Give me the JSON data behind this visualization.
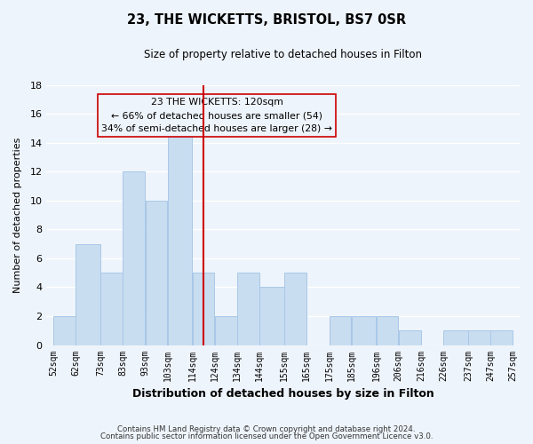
{
  "title": "23, THE WICKETTS, BRISTOL, BS7 0SR",
  "subtitle": "Size of property relative to detached houses in Filton",
  "xlabel": "Distribution of detached houses by size in Filton",
  "ylabel": "Number of detached properties",
  "bar_color": "#c9ddf0",
  "bar_edgecolor": "#a8c8e8",
  "vline_color": "#cc0000",
  "vline_x": 119,
  "bins": [
    52,
    62,
    73,
    83,
    93,
    103,
    114,
    124,
    134,
    144,
    155,
    165,
    175,
    185,
    196,
    206,
    216,
    226,
    237,
    247,
    257
  ],
  "counts": [
    2,
    7,
    5,
    12,
    10,
    15,
    5,
    2,
    5,
    4,
    5,
    0,
    2,
    2,
    2,
    1,
    0,
    1,
    1,
    1
  ],
  "tick_labels": [
    "52sqm",
    "62sqm",
    "73sqm",
    "83sqm",
    "93sqm",
    "103sqm",
    "114sqm",
    "124sqm",
    "134sqm",
    "144sqm",
    "155sqm",
    "165sqm",
    "175sqm",
    "185sqm",
    "196sqm",
    "206sqm",
    "216sqm",
    "226sqm",
    "237sqm",
    "247sqm",
    "257sqm"
  ],
  "annotation_title": "23 THE WICKETTS: 120sqm",
  "annotation_line1": "← 66% of detached houses are smaller (54)",
  "annotation_line2": "34% of semi-detached houses are larger (28) →",
  "ylim": [
    0,
    18
  ],
  "yticks": [
    0,
    2,
    4,
    6,
    8,
    10,
    12,
    14,
    16,
    18
  ],
  "footer1": "Contains HM Land Registry data © Crown copyright and database right 2024.",
  "footer2": "Contains public sector information licensed under the Open Government Licence v3.0.",
  "background_color": "#eef4fb",
  "grid_color": "#ffffff",
  "annotation_border_color": "#cc0000"
}
